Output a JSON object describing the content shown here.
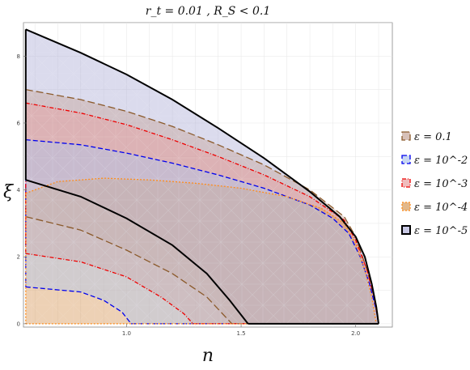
{
  "chart_data": {
    "type": "area",
    "title": "r_t = 0.01 , R_S < 0.1",
    "xlabel": "n",
    "ylabel": "ξ",
    "xlim": [
      0.55,
      2.16
    ],
    "ylim": [
      -0.1,
      9.0
    ],
    "xticks": [
      1.0,
      1.5,
      2.0
    ],
    "xtick_labels": [
      "1.0",
      "1.5",
      "2.0"
    ],
    "yticks": [
      0,
      2,
      4,
      6,
      8
    ],
    "ytick_labels": [
      "0",
      "2",
      "4",
      "6",
      "8"
    ],
    "grid": true,
    "legend_position": "right",
    "series": [
      {
        "name": "ε = 0.1",
        "color": "#8b5a2b",
        "fill": "#c6a59a",
        "dash": "9,4",
        "upper": [
          [
            0.56,
            7.0
          ],
          [
            0.8,
            6.7
          ],
          [
            1.0,
            6.35
          ],
          [
            1.2,
            5.9
          ],
          [
            1.4,
            5.35
          ],
          [
            1.6,
            4.75
          ],
          [
            1.8,
            4.0
          ],
          [
            1.95,
            3.2
          ],
          [
            2.0,
            2.6
          ],
          [
            2.05,
            1.6
          ],
          [
            2.08,
            0.8
          ],
          [
            2.1,
            0.0
          ]
        ],
        "lower": [
          [
            0.56,
            3.2
          ],
          [
            0.8,
            2.8
          ],
          [
            1.0,
            2.2
          ],
          [
            1.2,
            1.5
          ],
          [
            1.35,
            0.8
          ],
          [
            1.46,
            0.0
          ]
        ]
      },
      {
        "name": "ε = 10^-2",
        "color": "#0000ee",
        "fill": "#b0c6ee",
        "dash": "6,3",
        "upper": [
          [
            0.56,
            5.5
          ],
          [
            0.8,
            5.35
          ],
          [
            1.0,
            5.1
          ],
          [
            1.2,
            4.8
          ],
          [
            1.4,
            4.45
          ],
          [
            1.6,
            4.05
          ],
          [
            1.8,
            3.55
          ],
          [
            1.9,
            3.15
          ],
          [
            1.97,
            2.7
          ],
          [
            2.02,
            2.0
          ],
          [
            2.06,
            1.2
          ],
          [
            2.09,
            0.4
          ],
          [
            2.1,
            0.0
          ]
        ],
        "lower": [
          [
            0.56,
            1.1
          ],
          [
            0.8,
            0.95
          ],
          [
            0.9,
            0.7
          ],
          [
            0.98,
            0.35
          ],
          [
            1.02,
            0.0
          ]
        ]
      },
      {
        "name": "ε = 10^-3",
        "color": "#ee0000",
        "fill": "#e8a0a0",
        "dash": "5,2,1,2",
        "upper": [
          [
            0.56,
            6.6
          ],
          [
            0.8,
            6.3
          ],
          [
            1.0,
            5.95
          ],
          [
            1.2,
            5.5
          ],
          [
            1.4,
            5.0
          ],
          [
            1.6,
            4.45
          ],
          [
            1.8,
            3.8
          ],
          [
            1.95,
            3.1
          ],
          [
            2.0,
            2.5
          ],
          [
            2.05,
            1.6
          ],
          [
            2.08,
            0.8
          ],
          [
            2.1,
            0.0
          ]
        ],
        "lower": [
          [
            0.56,
            2.1
          ],
          [
            0.8,
            1.85
          ],
          [
            1.0,
            1.4
          ],
          [
            1.15,
            0.8
          ],
          [
            1.25,
            0.3
          ],
          [
            1.29,
            0.0
          ]
        ]
      },
      {
        "name": "ε = 10^-4",
        "color": "#ff8c1a",
        "fill": "#d69a5a",
        "dash": "2,2",
        "upper": [
          [
            0.56,
            3.9
          ],
          [
            0.7,
            4.25
          ],
          [
            0.9,
            4.35
          ],
          [
            1.1,
            4.3
          ],
          [
            1.3,
            4.2
          ],
          [
            1.5,
            4.05
          ],
          [
            1.7,
            3.8
          ],
          [
            1.85,
            3.45
          ],
          [
            1.95,
            3.0
          ],
          [
            2.0,
            2.4
          ],
          [
            2.04,
            1.6
          ],
          [
            2.07,
            0.8
          ],
          [
            2.09,
            0.0
          ]
        ],
        "lower": [
          [
            0.56,
            0.0
          ],
          [
            1.5,
            0.0
          ]
        ]
      },
      {
        "name": "ε = 10^-5",
        "color": "#000000",
        "fill": "#b0b0d8",
        "dash": "",
        "upper": [
          [
            0.56,
            8.8
          ],
          [
            0.8,
            8.1
          ],
          [
            1.0,
            7.45
          ],
          [
            1.2,
            6.7
          ],
          [
            1.4,
            5.85
          ],
          [
            1.6,
            4.95
          ],
          [
            1.8,
            3.95
          ],
          [
            1.93,
            3.2
          ],
          [
            2.0,
            2.6
          ],
          [
            2.04,
            2.0
          ],
          [
            2.07,
            1.2
          ],
          [
            2.09,
            0.5
          ],
          [
            2.1,
            0.0
          ]
        ],
        "lower": [
          [
            0.56,
            4.3
          ],
          [
            0.8,
            3.8
          ],
          [
            1.0,
            3.15
          ],
          [
            1.2,
            2.35
          ],
          [
            1.35,
            1.5
          ],
          [
            1.45,
            0.7
          ],
          [
            1.53,
            0.0
          ]
        ]
      }
    ]
  }
}
